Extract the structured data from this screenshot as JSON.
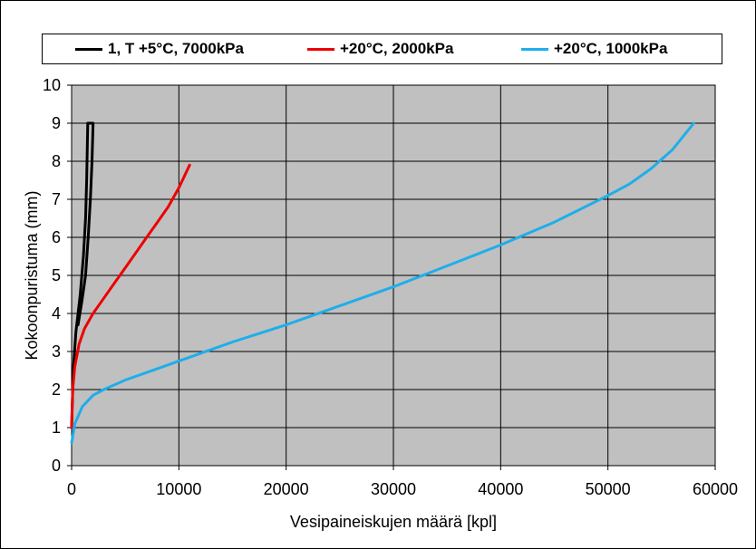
{
  "chart_data": {
    "type": "line",
    "title": "",
    "xlabel": "Vesipaineiskujen määrä [kpl]",
    "ylabel": "Kokoonpuristuma (mm)",
    "xlim": [
      0,
      60000
    ],
    "ylim": [
      0,
      10
    ],
    "xticks": [
      0,
      10000,
      20000,
      30000,
      40000,
      50000,
      60000
    ],
    "yticks": [
      0,
      1,
      2,
      3,
      4,
      5,
      6,
      7,
      8,
      9,
      10
    ],
    "grid": true,
    "plot_background": "#c0c0c0",
    "legend_position": "top",
    "series": [
      {
        "name": "1, T +5°C, 7000kPa",
        "color": "#000000",
        "points": [
          [
            0,
            1.0
          ],
          [
            150,
            2.5
          ],
          [
            400,
            3.5
          ],
          [
            800,
            4.5
          ],
          [
            1100,
            5.5
          ],
          [
            1300,
            6.5
          ],
          [
            1400,
            7.5
          ],
          [
            1500,
            9.0
          ],
          [
            2000,
            9.0
          ],
          [
            1900,
            8.0
          ],
          [
            1750,
            7.0
          ],
          [
            1550,
            6.0
          ],
          [
            1300,
            5.0
          ],
          [
            950,
            4.3
          ],
          [
            600,
            3.7
          ]
        ]
      },
      {
        "name": "+20°C, 2000kPa",
        "color": "#ee0000",
        "points": [
          [
            0,
            1.0
          ],
          [
            100,
            2.0
          ],
          [
            300,
            2.6
          ],
          [
            700,
            3.2
          ],
          [
            1200,
            3.6
          ],
          [
            2000,
            4.0
          ],
          [
            3000,
            4.4
          ],
          [
            4000,
            4.8
          ],
          [
            5000,
            5.2
          ],
          [
            6000,
            5.6
          ],
          [
            7000,
            6.0
          ],
          [
            8000,
            6.4
          ],
          [
            9000,
            6.8
          ],
          [
            10000,
            7.3
          ],
          [
            11000,
            7.9
          ]
        ]
      },
      {
        "name": "+20°C, 1000kPa",
        "color": "#1eaeeb",
        "points": [
          [
            0,
            0.6
          ],
          [
            300,
            1.1
          ],
          [
            1000,
            1.55
          ],
          [
            2000,
            1.85
          ],
          [
            3000,
            2.0
          ],
          [
            5000,
            2.25
          ],
          [
            8000,
            2.55
          ],
          [
            11000,
            2.85
          ],
          [
            15000,
            3.25
          ],
          [
            20000,
            3.7
          ],
          [
            25000,
            4.2
          ],
          [
            30000,
            4.7
          ],
          [
            35000,
            5.25
          ],
          [
            40000,
            5.8
          ],
          [
            45000,
            6.4
          ],
          [
            50000,
            7.1
          ],
          [
            52000,
            7.4
          ],
          [
            54000,
            7.8
          ],
          [
            56000,
            8.3
          ],
          [
            58000,
            9.0
          ]
        ]
      }
    ]
  }
}
